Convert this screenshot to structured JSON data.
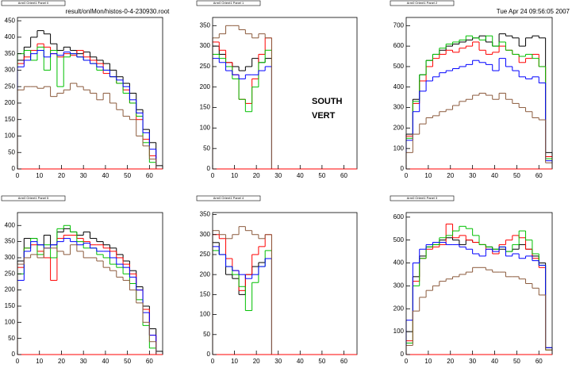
{
  "file_label": "result/onlMon/histos-0-4-230930.root",
  "timestamp": "Tue Apr 24 09:56:05 2007",
  "labels": [
    "SOUTH",
    "VERT"
  ],
  "chart_data": [
    {
      "type": "histogram",
      "title": "Arm0 Orient1 Panel 0",
      "bins": [
        0,
        3,
        6,
        9,
        12,
        15,
        18,
        21,
        24,
        27,
        30,
        33,
        36,
        39,
        42,
        45,
        48,
        51,
        54,
        57,
        60,
        63,
        66
      ],
      "xlim": [
        0,
        66
      ],
      "xticks": [
        0,
        10,
        20,
        30,
        40,
        50,
        60
      ],
      "ylim": [
        0,
        460
      ],
      "yticks": [
        0,
        50,
        100,
        150,
        200,
        250,
        300,
        350,
        400,
        450
      ],
      "series": [
        {
          "color": "#000000",
          "values": [
            330,
            370,
            400,
            420,
            410,
            380,
            360,
            370,
            360,
            350,
            355,
            340,
            330,
            320,
            300,
            280,
            260,
            230,
            180,
            120,
            80,
            10
          ]
        },
        {
          "color": "#ff0000",
          "values": [
            320,
            340,
            360,
            380,
            370,
            350,
            340,
            350,
            345,
            360,
            340,
            330,
            320,
            290,
            280,
            260,
            240,
            200,
            150,
            90,
            40,
            0
          ]
        },
        {
          "color": "#00c000",
          "values": [
            350,
            360,
            330,
            370,
            300,
            360,
            250,
            340,
            350,
            340,
            330,
            320,
            300,
            300,
            280,
            260,
            230,
            200,
            160,
            80,
            20,
            0
          ]
        },
        {
          "color": "#0000ff",
          "values": [
            310,
            330,
            350,
            360,
            340,
            350,
            345,
            355,
            350,
            340,
            330,
            320,
            310,
            300,
            280,
            270,
            250,
            210,
            170,
            110,
            60,
            0
          ]
        },
        {
          "color": "#8b5a3c",
          "values": [
            240,
            250,
            250,
            245,
            250,
            220,
            230,
            240,
            260,
            250,
            240,
            230,
            210,
            230,
            200,
            180,
            160,
            150,
            100,
            70,
            30,
            0
          ]
        }
      ]
    },
    {
      "type": "histogram",
      "title": "Arm0 Orient1 Panel 1",
      "bins": [
        0,
        3,
        6,
        9,
        12,
        15,
        18,
        21,
        24,
        27
      ],
      "xlim": [
        0,
        66
      ],
      "xticks": [
        0,
        10,
        20,
        30,
        40,
        50,
        60
      ],
      "ylim": [
        0,
        370
      ],
      "yticks": [
        0,
        50,
        100,
        150,
        200,
        250,
        300,
        350
      ],
      "series": [
        {
          "color": "#000000",
          "values": [
            300,
            280,
            260,
            250,
            240,
            250,
            270,
            260,
            270
          ]
        },
        {
          "color": "#ff0000",
          "values": [
            310,
            290,
            260,
            230,
            170,
            160,
            220,
            280,
            320
          ]
        },
        {
          "color": "#00c000",
          "values": [
            280,
            270,
            250,
            220,
            170,
            140,
            200,
            260,
            290
          ]
        },
        {
          "color": "#0000ff",
          "values": [
            270,
            260,
            240,
            230,
            220,
            230,
            230,
            240,
            250
          ]
        },
        {
          "color": "#8b5a3c",
          "values": [
            320,
            330,
            350,
            350,
            340,
            330,
            320,
            330,
            320
          ]
        }
      ]
    },
    {
      "type": "histogram",
      "title": "Arm0 Orient1 Panel 2",
      "bins": [
        0,
        3,
        6,
        9,
        12,
        15,
        18,
        21,
        24,
        27,
        30,
        33,
        36,
        39,
        42,
        45,
        48,
        51,
        54,
        57,
        60,
        63,
        66
      ],
      "xlim": [
        0,
        66
      ],
      "xticks": [
        0,
        10,
        20,
        30,
        40,
        50,
        60
      ],
      "ylim": [
        0,
        740
      ],
      "yticks": [
        0,
        100,
        200,
        300,
        400,
        500,
        600,
        700
      ],
      "series": [
        {
          "color": "#000000",
          "values": [
            170,
            340,
            460,
            530,
            560,
            580,
            600,
            610,
            620,
            630,
            640,
            650,
            620,
            600,
            660,
            650,
            640,
            600,
            640,
            650,
            640,
            80
          ]
        },
        {
          "color": "#ff0000",
          "values": [
            160,
            320,
            430,
            500,
            540,
            560,
            580,
            570,
            590,
            600,
            620,
            580,
            560,
            570,
            600,
            580,
            560,
            520,
            540,
            560,
            500,
            60
          ]
        },
        {
          "color": "#00c000",
          "values": [
            150,
            330,
            460,
            530,
            560,
            590,
            610,
            620,
            630,
            650,
            640,
            630,
            650,
            600,
            620,
            580,
            560,
            550,
            560,
            540,
            500,
            50
          ]
        },
        {
          "color": "#0000ff",
          "values": [
            140,
            280,
            380,
            430,
            450,
            470,
            480,
            490,
            500,
            510,
            530,
            520,
            510,
            480,
            540,
            500,
            480,
            450,
            440,
            450,
            420,
            40
          ]
        },
        {
          "color": "#8b5a3c",
          "values": [
            80,
            170,
            220,
            250,
            260,
            280,
            290,
            310,
            330,
            340,
            360,
            370,
            360,
            340,
            370,
            340,
            320,
            300,
            280,
            250,
            240,
            30
          ]
        }
      ]
    },
    {
      "type": "histogram",
      "title": "Arm0 Orient1 Panel 5",
      "bins": [
        0,
        3,
        6,
        9,
        12,
        15,
        18,
        21,
        24,
        27,
        30,
        33,
        36,
        39,
        42,
        45,
        48,
        51,
        54,
        57,
        60,
        63,
        66
      ],
      "xlim": [
        0,
        66
      ],
      "xticks": [
        0,
        10,
        20,
        30,
        40,
        50,
        60
      ],
      "ylim": [
        0,
        440
      ],
      "yticks": [
        0,
        50,
        100,
        150,
        200,
        250,
        300,
        350,
        400
      ],
      "series": [
        {
          "color": "#000000",
          "values": [
            290,
            360,
            360,
            340,
            370,
            340,
            380,
            390,
            380,
            370,
            380,
            360,
            350,
            340,
            330,
            310,
            290,
            260,
            210,
            150,
            80,
            10
          ]
        },
        {
          "color": "#ff0000",
          "values": [
            270,
            330,
            340,
            320,
            300,
            230,
            360,
            370,
            370,
            360,
            350,
            340,
            340,
            330,
            320,
            300,
            280,
            250,
            200,
            140,
            60,
            0
          ]
        },
        {
          "color": "#00c000",
          "values": [
            250,
            330,
            360,
            310,
            340,
            300,
            390,
            400,
            380,
            350,
            330,
            330,
            310,
            300,
            280,
            270,
            250,
            220,
            170,
            90,
            20,
            0
          ]
        },
        {
          "color": "#0000ff",
          "values": [
            230,
            320,
            350,
            340,
            330,
            340,
            350,
            360,
            350,
            340,
            345,
            330,
            320,
            320,
            300,
            280,
            270,
            240,
            200,
            130,
            60,
            0
          ]
        },
        {
          "color": "#8b5a3c",
          "values": [
            280,
            300,
            310,
            300,
            330,
            330,
            320,
            310,
            340,
            320,
            300,
            300,
            290,
            270,
            260,
            240,
            230,
            200,
            160,
            100,
            40,
            0
          ]
        }
      ]
    },
    {
      "type": "histogram",
      "title": "Arm0 Orient1 Panel 4",
      "bins": [
        0,
        3,
        6,
        9,
        12,
        15,
        18,
        21,
        24,
        27
      ],
      "xlim": [
        0,
        66
      ],
      "xticks": [
        0,
        10,
        20,
        30,
        40,
        50,
        60
      ],
      "ylim": [
        0,
        355
      ],
      "yticks": [
        0,
        50,
        100,
        150,
        200,
        250,
        300,
        350
      ],
      "series": [
        {
          "color": "#000000",
          "values": [
            280,
            250,
            200,
            190,
            150,
            200,
            220,
            230,
            240
          ]
        },
        {
          "color": "#ff0000",
          "values": [
            300,
            290,
            240,
            210,
            160,
            200,
            250,
            270,
            300
          ]
        },
        {
          "color": "#00c000",
          "values": [
            260,
            250,
            220,
            200,
            170,
            110,
            180,
            220,
            260
          ]
        },
        {
          "color": "#0000ff",
          "values": [
            270,
            250,
            220,
            210,
            200,
            190,
            200,
            220,
            240
          ]
        },
        {
          "color": "#8b5a3c",
          "values": [
            310,
            300,
            290,
            300,
            320,
            310,
            300,
            290,
            300
          ]
        }
      ]
    },
    {
      "type": "histogram",
      "title": "Arm0 Orient1 Panel 3",
      "bins": [
        0,
        3,
        6,
        9,
        12,
        15,
        18,
        21,
        24,
        27,
        30,
        33,
        36,
        39,
        42,
        45,
        48,
        51,
        54,
        57,
        60,
        63,
        66
      ],
      "xlim": [
        0,
        66
      ],
      "xticks": [
        0,
        10,
        20,
        30,
        40,
        50,
        60
      ],
      "ylim": [
        0,
        620
      ],
      "yticks": [
        0,
        100,
        200,
        300,
        400,
        500,
        600
      ],
      "series": [
        {
          "color": "#000000",
          "values": [
            100,
            340,
            430,
            470,
            480,
            500,
            510,
            500,
            480,
            500,
            490,
            480,
            470,
            460,
            460,
            450,
            460,
            480,
            460,
            430,
            400,
            30
          ]
        },
        {
          "color": "#ff0000",
          "values": [
            60,
            320,
            420,
            460,
            470,
            480,
            570,
            510,
            520,
            500,
            490,
            480,
            460,
            440,
            480,
            500,
            520,
            510,
            460,
            420,
            380,
            20
          ]
        },
        {
          "color": "#00c000",
          "values": [
            50,
            300,
            420,
            470,
            480,
            510,
            520,
            540,
            560,
            550,
            520,
            480,
            470,
            460,
            470,
            450,
            480,
            540,
            500,
            440,
            390,
            20
          ]
        },
        {
          "color": "#0000ff",
          "values": [
            150,
            400,
            460,
            480,
            490,
            490,
            480,
            480,
            470,
            460,
            440,
            430,
            460,
            450,
            470,
            430,
            440,
            420,
            430,
            410,
            390,
            30
          ]
        },
        {
          "color": "#8b5a3c",
          "values": [
            40,
            190,
            250,
            280,
            300,
            320,
            330,
            340,
            350,
            360,
            380,
            380,
            370,
            360,
            360,
            340,
            340,
            330,
            310,
            290,
            260,
            20
          ]
        }
      ]
    }
  ]
}
